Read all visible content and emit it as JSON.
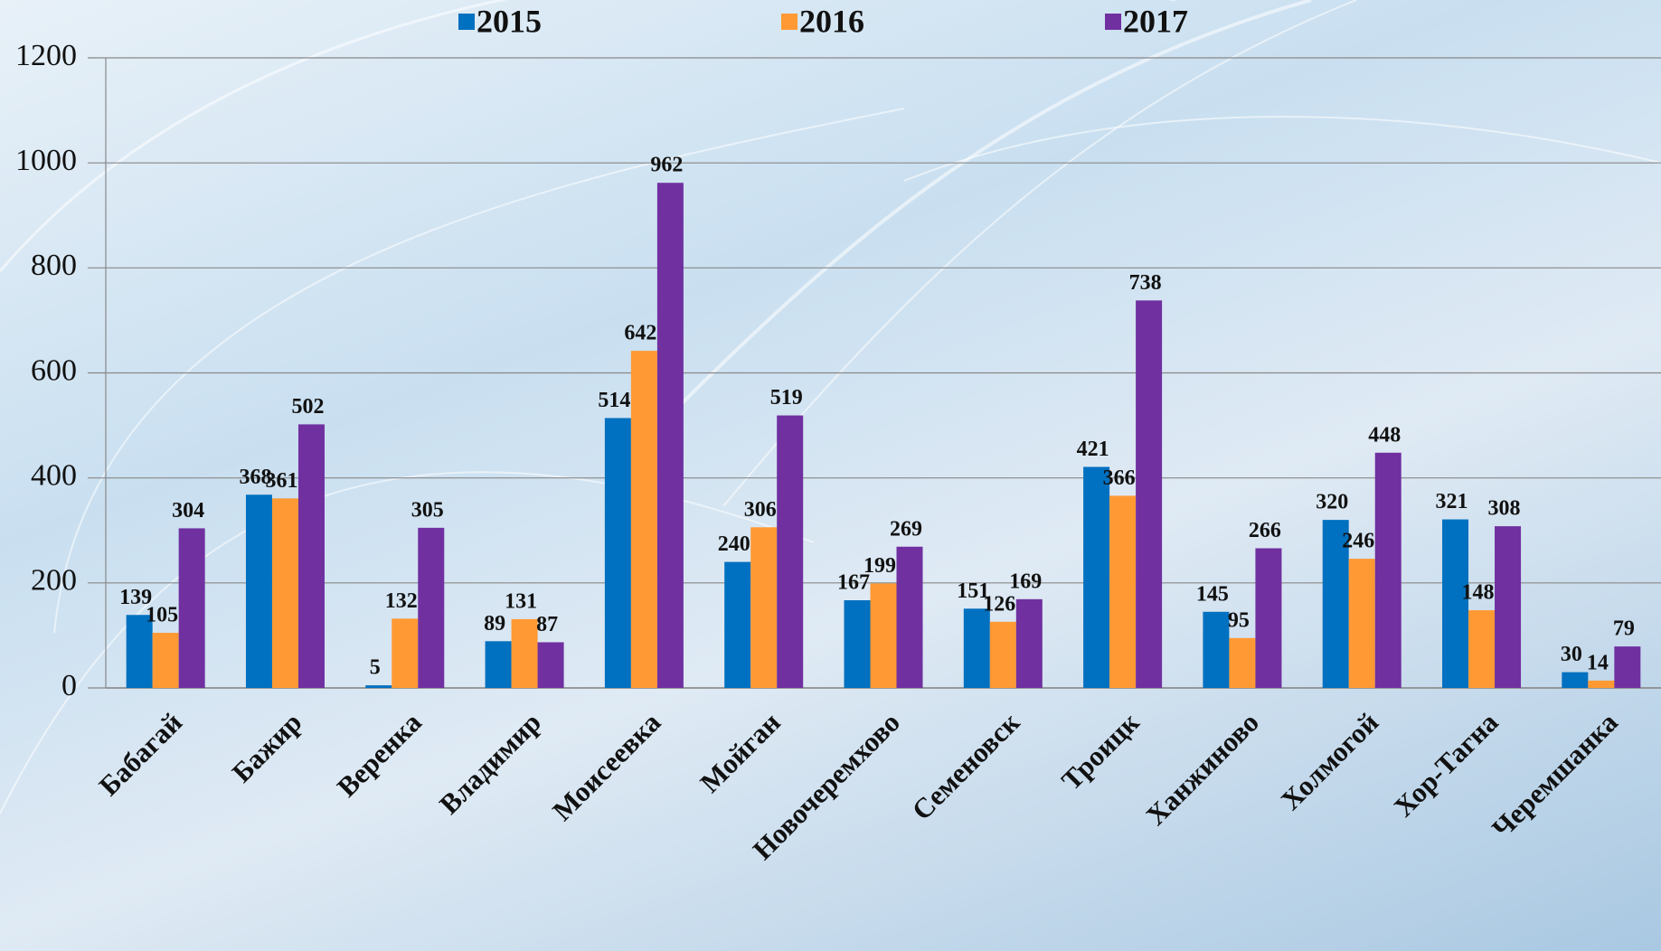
{
  "chart_data": {
    "type": "bar",
    "categories": [
      "Бабагай",
      "Бажир",
      "Веренка",
      "Владимир",
      "Моисеевка",
      "Мойган",
      "Новочеремхово",
      "Семеновск",
      "Троицк",
      "Ханжиново",
      "Холмогой",
      "Хор-Тагна",
      "Черемшанка"
    ],
    "series": [
      {
        "name": "2015",
        "color": "#0070c0",
        "values": [
          139,
          368,
          5,
          89,
          514,
          240,
          167,
          151,
          421,
          145,
          320,
          321,
          30
        ]
      },
      {
        "name": "2016",
        "color": "#ff9933",
        "values": [
          105,
          361,
          132,
          131,
          642,
          306,
          199,
          126,
          366,
          95,
          246,
          148,
          14
        ]
      },
      {
        "name": "2017",
        "color": "#7030a0",
        "values": [
          304,
          502,
          305,
          87,
          962,
          519,
          269,
          169,
          738,
          266,
          448,
          308,
          79
        ]
      }
    ],
    "ylim": [
      0,
      1200
    ],
    "yticks": [
      0,
      200,
      400,
      600,
      800,
      1000,
      1200
    ],
    "grid": true,
    "legend": "top"
  }
}
